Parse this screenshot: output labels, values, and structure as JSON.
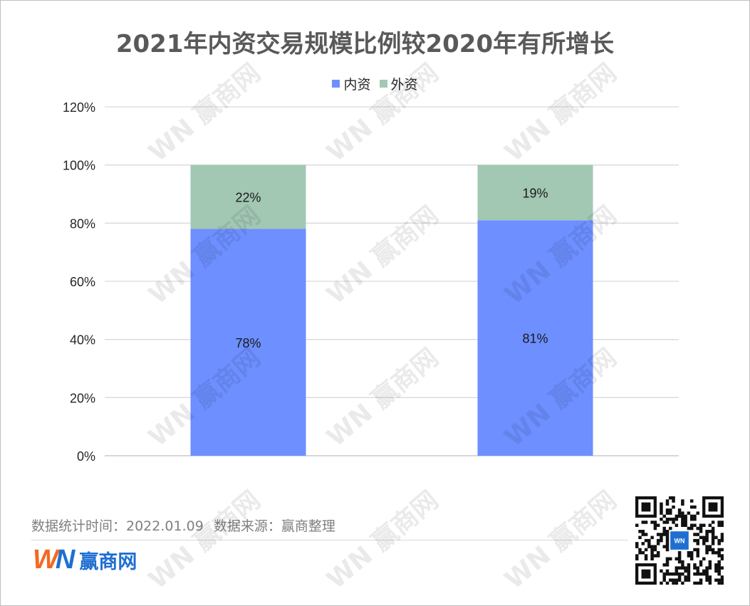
{
  "chart_data": {
    "type": "bar",
    "stacked": true,
    "title": "2021年内资交易规模比例较2020年有所增长",
    "categories": [
      "",
      ""
    ],
    "series": [
      {
        "name": "内资",
        "color": "#6d8fff",
        "values": [
          78,
          81
        ],
        "labels": [
          "78%",
          "81%"
        ]
      },
      {
        "name": "外资",
        "color": "#a2c8b4",
        "values": [
          22,
          19
        ],
        "labels": [
          "22%",
          "19%"
        ]
      }
    ],
    "ylim": [
      0,
      120
    ],
    "yticks": [
      "0%",
      "20%",
      "40%",
      "60%",
      "80%",
      "100%",
      "120%"
    ],
    "grid": true,
    "legend": "top-center"
  },
  "footer": {
    "stat_time": "数据统计时间：2022.01.09",
    "source": "数据来源：赢商整理"
  },
  "brand": {
    "logo_text": "WN",
    "name": "赢商网",
    "watermark_text": "赢商网",
    "qr_label": "赢商网"
  }
}
